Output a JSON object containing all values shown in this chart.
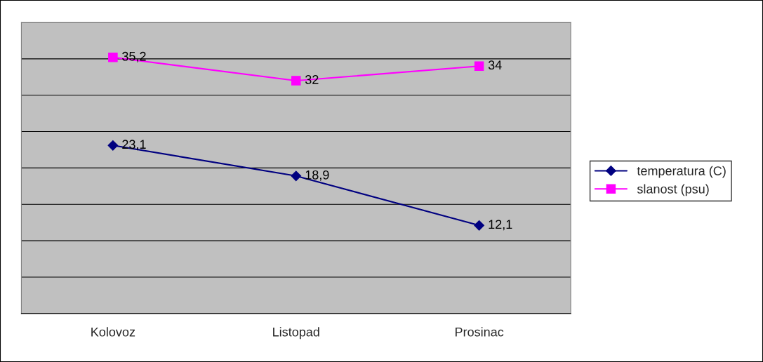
{
  "chart_data": {
    "type": "line",
    "categories": [
      "Kolovoz",
      "Listopad",
      "Prosinac"
    ],
    "series": [
      {
        "name": "temperatura (C)",
        "color": "#000080",
        "marker": "diamond",
        "values": [
          23.1,
          18.9,
          12.1
        ],
        "value_labels": [
          "23,1",
          "18,9",
          "12,1"
        ]
      },
      {
        "name": "slanost (psu)",
        "color": "#ff00ff",
        "marker": "square",
        "values": [
          35.2,
          32,
          34
        ],
        "value_labels": [
          "35,2",
          "32",
          "34"
        ]
      }
    ],
    "ylim": [
      0,
      40
    ],
    "yticks": [
      {
        "value": 0,
        "label": null
      },
      {
        "value": 5,
        "label": null
      },
      {
        "value": 10,
        "label": null
      },
      {
        "value": 15,
        "label": null
      },
      {
        "value": 20,
        "label": null
      },
      {
        "value": 25,
        "label": null
      },
      {
        "value": 30,
        "label": null
      },
      {
        "value": 35,
        "label": null
      },
      {
        "value": 40,
        "label": null
      }
    ],
    "tick_labels": "x",
    "grid": "y",
    "legend": "right",
    "line_style": "solid"
  }
}
